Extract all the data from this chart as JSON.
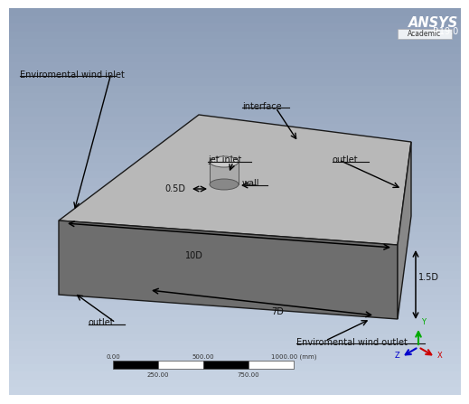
{
  "bg_colors": [
    "#aab8cc",
    "#c8d4e4"
  ],
  "box_top_color": "#b8b8b8",
  "box_front_color": "#6e6e6e",
  "box_right_color": "#888888",
  "box_edge_color": "#1a1a1a",
  "cyl_body_color": "#aaaaaa",
  "cyl_top_color": "#cccccc",
  "cyl_bot_color": "#999999",
  "ansys_text": "ANSYS",
  "ansys_version": "R19.0",
  "ansys_edition": "Academic",
  "labels": {
    "env_wind_inlet": "Enviromental wind inlet",
    "interface": "interface",
    "jet_inlet": "jet inlet",
    "wall": "wall",
    "outlet_right": "outlet",
    "outlet_left": "outlet",
    "env_wind_outlet": "Enviromental wind outlet",
    "dim_05D": "0.5D",
    "dim_10D": "10D",
    "dim_7D": "7D",
    "dim_15D": "1.5D"
  }
}
